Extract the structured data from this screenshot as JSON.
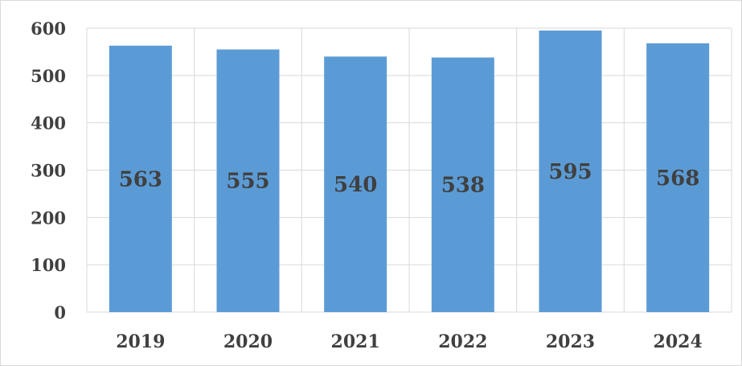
{
  "chart_data": {
    "type": "bar",
    "categories": [
      "2019",
      "2020",
      "2021",
      "2022",
      "2023",
      "2024"
    ],
    "values": [
      563,
      555,
      540,
      538,
      595,
      568
    ],
    "data_labels": [
      "563",
      "555",
      "540",
      "538",
      "595",
      "568"
    ],
    "y_ticks": [
      "0",
      "100",
      "200",
      "300",
      "400",
      "500",
      "600"
    ],
    "title": "",
    "xlabel": "",
    "ylabel": "",
    "ylim": [
      0,
      600
    ],
    "grid": true,
    "legend": "none",
    "colors": {
      "bar": "#5b9bd5",
      "grid": "#d9d9d9",
      "text": "#404040"
    }
  }
}
